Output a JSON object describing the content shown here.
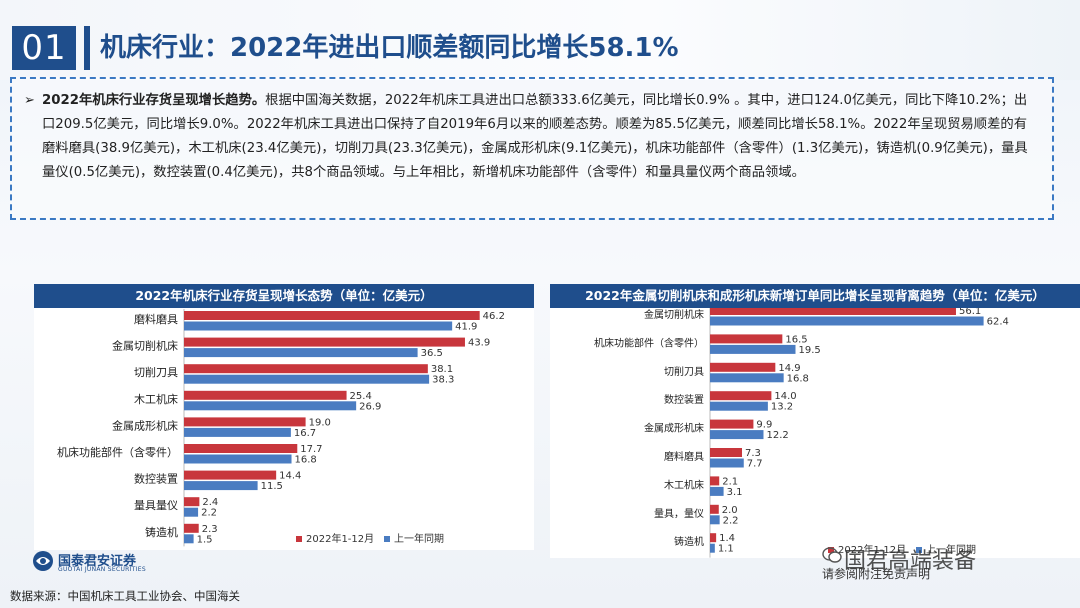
{
  "header": {
    "section_number": "01",
    "title": "机床行业：2022年进出口顺差额同比增长58.1%"
  },
  "summary": {
    "bullet": "➢",
    "bold_lead": "2022年机床行业存货呈现增长趋势。",
    "body": "根据中国海关数据，2022年机床工具进出口总额333.6亿美元，同比增长0.9% 。其中，进口124.0亿美元，同比下降10.2%；出口209.5亿美元，同比增长9.0%。2022年机床工具进出口保持了自2019年6月以来的顺差态势。顺差为85.5亿美元，顺差同比增长58.1%。2022年呈现贸易顺差的有磨料磨具(38.9亿美元)，木工机床(23.4亿美元)，切削刀具(23.3亿美元)，金属成形机床(9.1亿美元)，机床功能部件（含零件）(1.3亿美元)，铸造机(0.9亿美元)，量具量仪(0.5亿美元)，数控装置(0.4亿美元)，共8个商品领域。与上年相比，新增机床功能部件（含零件）和量具量仪两个商品领域。"
  },
  "colors": {
    "current": "#c8363c",
    "previous": "#4a7cc1",
    "brand": "#1f4e8c"
  },
  "chart_data": [
    {
      "type": "bar",
      "orientation": "horizontal",
      "title": "2022年机床行业存货呈现增长态势（单位：亿美元）",
      "categories": [
        "磨料磨具",
        "金属切削机床",
        "切削刀具",
        "木工机床",
        "金属成形机床",
        "机床功能部件（含零件）",
        "数控装置",
        "量具量仪",
        "铸造机"
      ],
      "series": [
        {
          "name": "2022年1-12月",
          "values": [
            46.2,
            43.9,
            38.1,
            25.4,
            19.0,
            17.7,
            14.4,
            2.4,
            2.3
          ]
        },
        {
          "name": "上一年同期",
          "values": [
            41.9,
            36.5,
            38.3,
            26.9,
            16.7,
            16.8,
            11.5,
            2.2,
            1.5
          ]
        }
      ],
      "xlim": [
        0,
        50
      ],
      "legend": "bottom-right"
    },
    {
      "type": "bar",
      "orientation": "horizontal",
      "title": "2022年金属切削机床和成形机床新增订单同比增长呈现背离趋势（单位：亿美元）",
      "categories": [
        "金属切削机床",
        "机床功能部件（含零件）",
        "切削刀具",
        "数控装置",
        "金属成形机床",
        "磨料磨具",
        "木工机床",
        "量具，量仪",
        "铸造机"
      ],
      "series": [
        {
          "name": "2022年1-12月",
          "values": [
            56.1,
            16.5,
            14.9,
            14.0,
            9.9,
            7.3,
            2.1,
            2.0,
            1.4
          ]
        },
        {
          "name": "上一年同期",
          "values": [
            62.4,
            19.5,
            16.8,
            13.2,
            12.2,
            7.7,
            3.1,
            2.2,
            1.1
          ]
        }
      ],
      "xlim": [
        0,
        65
      ],
      "legend": "bottom-left"
    }
  ],
  "footer": {
    "logo_cn": "国泰君安证券",
    "logo_en": "GUOTAI JUNAN SECURITIES",
    "source": "数据来源：中国机床工具工业协会、中国海关",
    "watermark": "国君高端装备",
    "note": "请参阅附注免责声明"
  }
}
